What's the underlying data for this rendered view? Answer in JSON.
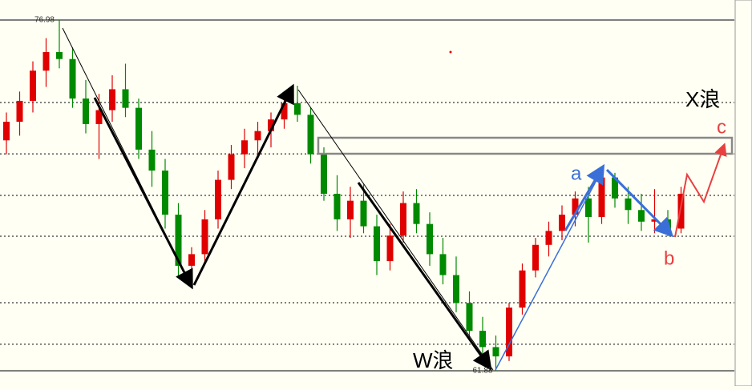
{
  "chart_data": {
    "type": "candlestick",
    "ylim": [
      61.88,
      76.98
    ],
    "levels": [
      73.43,
      71.22,
      69.43,
      67.67,
      64.81,
      63.02
    ],
    "up_color": "#e00000",
    "down_color": "#008a00",
    "high_label": 76.98,
    "low_label": 61.88,
    "annotations": {
      "x_wave": "X浪",
      "w_wave": "W浪",
      "a": "a",
      "b": "b",
      "c": "c"
    },
    "ohlc": [
      [
        71.8,
        73.0,
        71.2,
        72.6
      ],
      [
        72.6,
        73.9,
        72.0,
        73.5
      ],
      [
        73.5,
        75.2,
        73.0,
        74.8
      ],
      [
        74.8,
        76.2,
        74.1,
        75.6
      ],
      [
        75.6,
        76.98,
        74.9,
        75.3
      ],
      [
        75.3,
        75.8,
        73.2,
        73.6
      ],
      [
        73.6,
        74.4,
        72.1,
        72.5
      ],
      [
        72.5,
        73.8,
        71.0,
        73.1
      ],
      [
        73.1,
        74.6,
        72.6,
        74.0
      ],
      [
        74.0,
        75.1,
        72.8,
        73.2
      ],
      [
        73.2,
        73.6,
        71.0,
        71.4
      ],
      [
        71.4,
        72.2,
        69.8,
        70.5
      ],
      [
        70.5,
        71.0,
        68.0,
        68.6
      ],
      [
        68.6,
        69.1,
        65.9,
        66.4
      ],
      [
        66.4,
        67.2,
        65.43,
        66.9
      ],
      [
        66.9,
        68.8,
        66.5,
        68.4
      ],
      [
        68.4,
        70.5,
        68.0,
        70.1
      ],
      [
        70.1,
        71.6,
        69.7,
        71.2
      ],
      [
        71.2,
        72.3,
        70.6,
        71.8
      ],
      [
        71.8,
        72.6,
        71.0,
        72.2
      ],
      [
        72.2,
        73.0,
        71.5,
        72.7
      ],
      [
        72.7,
        73.8,
        72.3,
        73.4
      ],
      [
        73.4,
        74.15,
        72.6,
        72.9
      ],
      [
        72.9,
        73.2,
        70.8,
        71.2
      ],
      [
        71.2,
        71.5,
        69.2,
        69.5
      ],
      [
        69.5,
        70.3,
        67.9,
        68.4
      ],
      [
        68.4,
        69.8,
        67.6,
        69.2
      ],
      [
        69.2,
        69.9,
        67.8,
        68.1
      ],
      [
        68.1,
        68.6,
        66.0,
        66.6
      ],
      [
        66.6,
        68.2,
        66.2,
        67.7
      ],
      [
        67.7,
        69.6,
        67.4,
        69.1
      ],
      [
        69.1,
        69.7,
        67.8,
        68.2
      ],
      [
        68.2,
        68.7,
        66.4,
        66.9
      ],
      [
        66.9,
        67.6,
        65.6,
        66.0
      ],
      [
        66.0,
        66.8,
        64.4,
        64.8
      ],
      [
        64.8,
        65.3,
        63.2,
        63.6
      ],
      [
        63.6,
        64.2,
        62.4,
        62.9
      ],
      [
        62.9,
        63.4,
        61.88,
        62.5
      ],
      [
        62.5,
        64.8,
        62.3,
        64.6
      ],
      [
        64.6,
        66.5,
        64.3,
        66.2
      ],
      [
        66.2,
        67.6,
        65.9,
        67.3
      ],
      [
        67.3,
        68.3,
        66.8,
        67.9
      ],
      [
        67.9,
        69.0,
        67.5,
        68.6
      ],
      [
        68.6,
        69.6,
        68.1,
        69.3
      ],
      [
        69.3,
        69.8,
        67.4,
        68.5
      ],
      [
        68.5,
        70.6,
        68.2,
        70.2
      ],
      [
        70.2,
        70.4,
        68.9,
        69.3
      ],
      [
        69.3,
        69.8,
        68.2,
        68.8
      ],
      [
        68.8,
        69.5,
        67.9,
        68.3
      ],
      [
        68.3,
        69.7,
        67.8,
        68.4
      ],
      [
        68.4,
        68.8,
        67.67,
        68.0
      ],
      [
        68.0,
        69.8,
        67.8,
        69.5
      ]
    ]
  }
}
